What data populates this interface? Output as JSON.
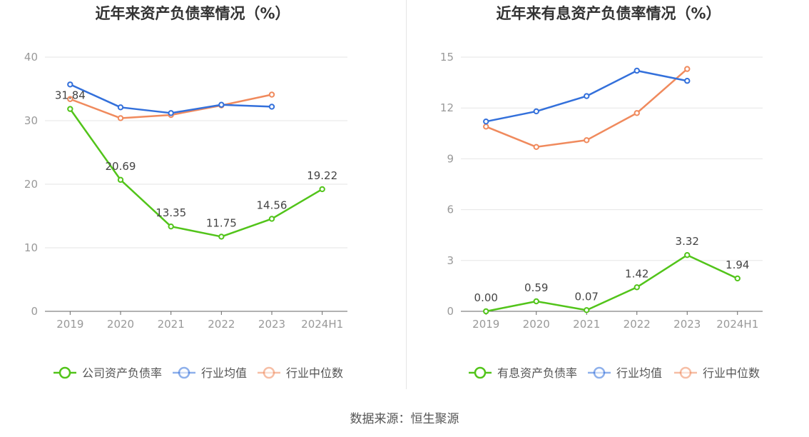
{
  "colors": {
    "company": "#52c41a",
    "industry_avg": "#3370db",
    "industry_median": "#f08a5d",
    "grid": "#e6e6e6",
    "axis": "#666666",
    "tick_text": "#999999",
    "title": "#333333",
    "label_text": "#444444"
  },
  "source": "数据来源：恒生聚源",
  "chart_data": [
    {
      "type": "line",
      "title": "近年来资产负债率情况（%）",
      "categories": [
        "2019",
        "2020",
        "2021",
        "2022",
        "2023",
        "2024H1"
      ],
      "ylim": [
        0,
        40
      ],
      "yticks": [
        0,
        10,
        20,
        30,
        40
      ],
      "series": [
        {
          "name": "公司资产负债率",
          "color_key": "company",
          "values": [
            31.84,
            20.69,
            13.35,
            11.75,
            14.56,
            19.22
          ],
          "labels": [
            "31.84",
            "20.69",
            "13.35",
            "11.75",
            "14.56",
            "19.22"
          ]
        },
        {
          "name": "行业均值",
          "color_key": "industry_avg",
          "values": [
            35.7,
            32.1,
            31.2,
            32.5,
            32.2,
            null
          ]
        },
        {
          "name": "行业中位数",
          "color_key": "industry_median",
          "values": [
            33.4,
            30.4,
            30.9,
            32.4,
            34.1,
            null
          ]
        }
      ]
    },
    {
      "type": "line",
      "title": "近年来有息资产负债率情况（%）",
      "categories": [
        "2019",
        "2020",
        "2021",
        "2022",
        "2023",
        "2024H1"
      ],
      "ylim": [
        0,
        15
      ],
      "yticks": [
        0,
        3,
        6,
        9,
        12,
        15
      ],
      "series": [
        {
          "name": "有息资产负债率",
          "color_key": "company",
          "values": [
            0.0,
            0.59,
            0.07,
            1.42,
            3.32,
            1.94
          ],
          "labels": [
            "0.00",
            "0.59",
            "0.07",
            "1.42",
            "3.32",
            "1.94"
          ]
        },
        {
          "name": "行业均值",
          "color_key": "industry_avg",
          "values": [
            11.2,
            11.8,
            12.7,
            14.2,
            13.6,
            null
          ]
        },
        {
          "name": "行业中位数",
          "color_key": "industry_median",
          "values": [
            10.9,
            9.7,
            10.1,
            11.7,
            14.3,
            null
          ]
        }
      ]
    }
  ]
}
